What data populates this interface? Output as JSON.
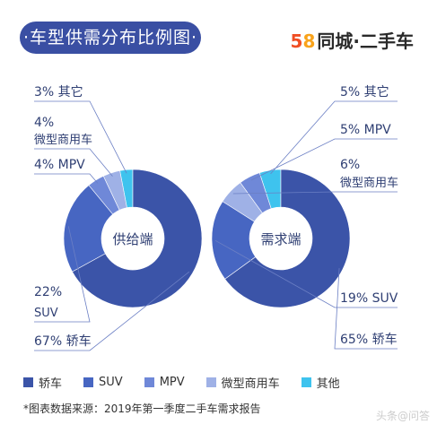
{
  "header": {
    "title": "·车型供需分布比例图·"
  },
  "brand": {
    "num5": "5",
    "num8": "8",
    "rest": "同城·二手车"
  },
  "source": "*图表数据来源：2019年第一季度二手车需求报告",
  "watermark": "头条@问答",
  "colors": {
    "sedan": "#3b54a8",
    "suv": "#4766c2",
    "mpv": "#6f88d8",
    "commercial": "#9fb1e6",
    "other": "#3ec3ee"
  },
  "legend": [
    {
      "label": "轿车",
      "color": "#3b54a8"
    },
    {
      "label": "SUV",
      "color": "#4766c2"
    },
    {
      "label": "MPV",
      "color": "#6f88d8"
    },
    {
      "label": "微型商用车",
      "color": "#9fb1e6"
    },
    {
      "label": "其他",
      "color": "#3ec3ee"
    }
  ],
  "chart_data": [
    {
      "type": "pie",
      "title": "供给端",
      "slices": [
        {
          "label": "轿车",
          "value": 67,
          "text": "67% 轿车",
          "color": "#3b54a8"
        },
        {
          "label": "SUV",
          "value": 22,
          "text": "22% SUV",
          "color": "#4766c2"
        },
        {
          "label": "MPV",
          "value": 4,
          "text": "4% MPV",
          "color": "#6f88d8"
        },
        {
          "label": "微型商用车",
          "value": 4,
          "text": "4% 微型商用车",
          "color": "#9fb1e6"
        },
        {
          "label": "其它",
          "value": 3,
          "text": "3% 其它",
          "color": "#3ec3ee"
        }
      ]
    },
    {
      "type": "pie",
      "title": "需求端",
      "slices": [
        {
          "label": "轿车",
          "value": 65,
          "text": "65% 轿车",
          "color": "#3b54a8"
        },
        {
          "label": "SUV",
          "value": 19,
          "text": "19% SUV",
          "color": "#4766c2"
        },
        {
          "label": "微型商用车",
          "value": 6,
          "text": "6% 微型商用车",
          "color": "#9fb1e6"
        },
        {
          "label": "MPV",
          "value": 5,
          "text": "5% MPV",
          "color": "#6f88d8"
        },
        {
          "label": "其它",
          "value": 5,
          "text": "5% 其它",
          "color": "#3ec3ee"
        }
      ]
    }
  ]
}
